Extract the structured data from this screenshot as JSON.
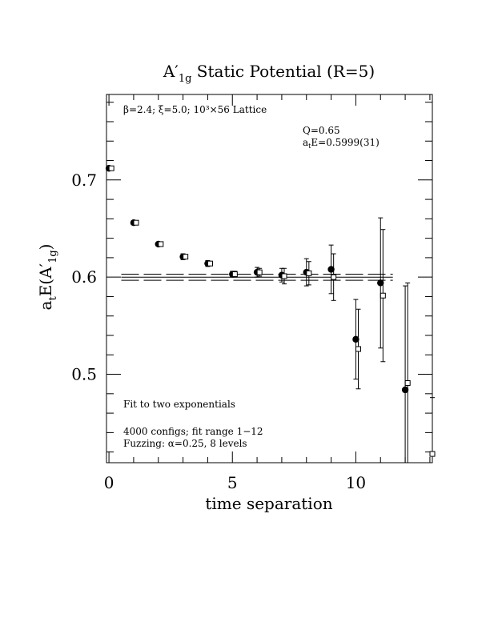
{
  "chart_data": {
    "type": "scatter",
    "title_main": "A",
    "title_prime": "′",
    "title_sub": "1g",
    "title_rest": " Static Potential (R=5)",
    "xlabel": "time separation",
    "ylabel_main": "a",
    "ylabel_sub1": "t",
    "ylabel_mid": "E(A",
    "ylabel_prime": "′",
    "ylabel_sub2": "1g",
    "ylabel_end": ")",
    "xlim": [
      -0.1,
      13.1
    ],
    "ylim": [
      0.409,
      0.788
    ],
    "x_ticks": [
      0,
      5,
      10
    ],
    "y_ticks": [
      0.5,
      0.6,
      0.7
    ],
    "x_ticklabels": [
      "0",
      "5",
      "10"
    ],
    "y_ticklabels": [
      "0.5",
      "0.6",
      "0.7"
    ],
    "annotations": {
      "lattice": "β=2.4; ξ=5.0; 10³×56 Lattice",
      "q": "Q=0.65",
      "fit_energy_a": "a",
      "fit_energy_sub": "t",
      "fit_energy_b": "E=0.5999(31)",
      "fit_method": "Fit to two exponentials",
      "configs": "4000 configs; fit range 1−12",
      "fuzzing": "Fuzzing: α=0.25, 8 levels"
    },
    "fit": {
      "value": 0.5999,
      "error": 0.0031,
      "x_range": [
        0.5,
        11.5
      ]
    },
    "series": [
      {
        "marker": "filled-circle",
        "points": [
          {
            "x": 0,
            "y": 0.712,
            "err": 0.002
          },
          {
            "x": 1,
            "y": 0.656,
            "err": 0.002
          },
          {
            "x": 2,
            "y": 0.634,
            "err": 0.002
          },
          {
            "x": 3,
            "y": 0.621,
            "err": 0.003
          },
          {
            "x": 4,
            "y": 0.614,
            "err": 0.003
          },
          {
            "x": 5,
            "y": 0.603,
            "err": 0.003
          },
          {
            "x": 6,
            "y": 0.605,
            "err": 0.005
          },
          {
            "x": 7,
            "y": 0.602,
            "err": 0.007
          },
          {
            "x": 8,
            "y": 0.605,
            "err": 0.014
          },
          {
            "x": 9,
            "y": 0.608,
            "err": 0.025
          },
          {
            "x": 10,
            "y": 0.536,
            "err": 0.041
          },
          {
            "x": 11,
            "y": 0.594,
            "err": 0.067
          },
          {
            "x": 12,
            "y": 0.484,
            "err": 0.107
          }
        ]
      },
      {
        "marker": "open-square",
        "points": [
          {
            "x": 0.1,
            "y": 0.712,
            "err": 0.002
          },
          {
            "x": 1.1,
            "y": 0.656,
            "err": 0.002
          },
          {
            "x": 2.1,
            "y": 0.634,
            "err": 0.002
          },
          {
            "x": 3.1,
            "y": 0.621,
            "err": 0.002
          },
          {
            "x": 4.1,
            "y": 0.614,
            "err": 0.002
          },
          {
            "x": 5.1,
            "y": 0.603,
            "err": 0.003
          },
          {
            "x": 6.1,
            "y": 0.605,
            "err": 0.004
          },
          {
            "x": 7.1,
            "y": 0.601,
            "err": 0.008
          },
          {
            "x": 8.1,
            "y": 0.604,
            "err": 0.012
          },
          {
            "x": 9.1,
            "y": 0.6,
            "err": 0.024
          },
          {
            "x": 10.1,
            "y": 0.526,
            "err": 0.041
          },
          {
            "x": 11.1,
            "y": 0.581,
            "err": 0.068
          },
          {
            "x": 12.1,
            "y": 0.491,
            "err": 0.103
          },
          {
            "x": 13.1,
            "y": 0.418,
            "err": 0.058
          }
        ]
      }
    ]
  }
}
